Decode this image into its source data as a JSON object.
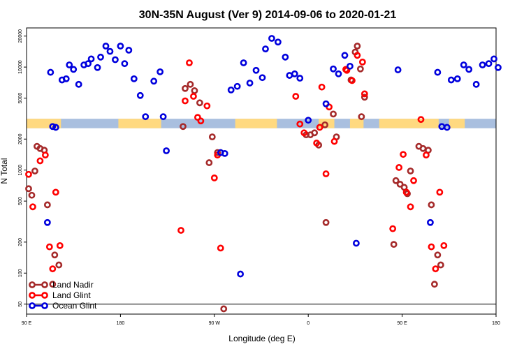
{
  "chart_data": {
    "type": "scatter",
    "title": "30N-35N August (Ver 9)   2014-09-06 to 2020-01-21",
    "xlabel": "Longitude (deg E)",
    "ylabel": "N Total",
    "y_scale": "log",
    "x_ticks": [
      {
        "label": "90 E",
        "value": 90
      },
      {
        "label": "180",
        "value": 180
      },
      {
        "label": "90 W",
        "value": 270
      },
      {
        "label": "0",
        "value": 360
      },
      {
        "label": "90 E",
        "value": 450
      },
      {
        "label": "180",
        "value": 540
      }
    ],
    "y_ticks": [
      50,
      100,
      200,
      500,
      1000,
      2000,
      5000,
      10000,
      20000
    ],
    "xlim": [
      90,
      540
    ],
    "ylim": [
      40,
      24000
    ],
    "reference_line": 50,
    "land_mask_band": {
      "y_range": [
        2550,
        3150
      ],
      "land_color": "#FFD980",
      "ocean_color": "#A9BFDF",
      "land_segments": [
        [
          90,
          123
        ],
        [
          178,
          219
        ],
        [
          290,
          330
        ],
        [
          370,
          385
        ],
        [
          400,
          413
        ],
        [
          428,
          485
        ],
        [
          495,
          510
        ]
      ]
    },
    "legend": {
      "position": "bottom-left"
    },
    "series": [
      {
        "name": "Land Nadir",
        "color": "#A52A2A",
        "points": [
          [
            92,
            660
          ],
          [
            95,
            570
          ],
          [
            98,
            980
          ],
          [
            100,
            1700
          ],
          [
            103,
            1620
          ],
          [
            107,
            1560
          ],
          [
            110,
            460
          ],
          [
            115,
            78
          ],
          [
            117,
            150
          ],
          [
            121,
            120
          ],
          [
            240,
            2650
          ],
          [
            242,
            6200
          ],
          [
            247,
            6800
          ],
          [
            251,
            5900
          ],
          [
            256,
            4500
          ],
          [
            265,
            1180
          ],
          [
            268,
            2100
          ],
          [
            273,
            1480
          ],
          [
            279,
            45
          ],
          [
            358,
            2200
          ],
          [
            362,
            2200
          ],
          [
            366,
            2300
          ],
          [
            370,
            1750
          ],
          [
            376,
            2750
          ],
          [
            377,
            310
          ],
          [
            384,
            3500
          ],
          [
            387,
            2100
          ],
          [
            401,
            7500
          ],
          [
            405,
            14000
          ],
          [
            407,
            16000
          ],
          [
            410,
            9600
          ],
          [
            414,
            5100
          ],
          [
            411,
            3300
          ],
          [
            442,
            190
          ],
          [
            444,
            790
          ],
          [
            448,
            730
          ],
          [
            452,
            680
          ],
          [
            455,
            590
          ],
          [
            458,
            980
          ],
          [
            466,
            1700
          ],
          [
            470,
            1620
          ],
          [
            475,
            1560
          ],
          [
            478,
            460
          ],
          [
            481,
            78
          ],
          [
            484,
            150
          ],
          [
            487,
            120
          ]
        ]
      },
      {
        "name": "Land Glint",
        "color": "#FF0000",
        "points": [
          [
            92,
            910
          ],
          [
            96,
            440
          ],
          [
            103,
            1230
          ],
          [
            108,
            1400
          ],
          [
            112,
            180
          ],
          [
            115,
            110
          ],
          [
            118,
            610
          ],
          [
            122,
            185
          ],
          [
            238,
            260
          ],
          [
            242,
            4700
          ],
          [
            246,
            11000
          ],
          [
            250,
            5200
          ],
          [
            254,
            3250
          ],
          [
            257,
            3000
          ],
          [
            263,
            4200
          ],
          [
            270,
            840
          ],
          [
            273,
            1400
          ],
          [
            276,
            175
          ],
          [
            348,
            5200
          ],
          [
            352,
            2800
          ],
          [
            356,
            2300
          ],
          [
            368,
            1830
          ],
          [
            371,
            2600
          ],
          [
            373,
            6400
          ],
          [
            377,
            920
          ],
          [
            380,
            4100
          ],
          [
            385,
            1900
          ],
          [
            396,
            9500
          ],
          [
            397,
            9300
          ],
          [
            402,
            7400
          ],
          [
            407,
            13000
          ],
          [
            412,
            11200
          ],
          [
            414,
            5500
          ],
          [
            441,
            270
          ],
          [
            447,
            1060
          ],
          [
            451,
            1420
          ],
          [
            454,
            610
          ],
          [
            458,
            440
          ],
          [
            461,
            790
          ],
          [
            468,
            3100
          ],
          [
            473,
            1400
          ],
          [
            478,
            180
          ],
          [
            482,
            110
          ],
          [
            486,
            610
          ],
          [
            490,
            185
          ]
        ]
      },
      {
        "name": "Ocean Glint",
        "color": "#0000DD",
        "points": [
          [
            110,
            310
          ],
          [
            113,
            8900
          ],
          [
            115,
            2650
          ],
          [
            118,
            2600
          ],
          [
            124,
            7500
          ],
          [
            128,
            7700
          ],
          [
            131,
            10500
          ],
          [
            135,
            9500
          ],
          [
            140,
            6800
          ],
          [
            145,
            10500
          ],
          [
            149,
            10800
          ],
          [
            152,
            12000
          ],
          [
            158,
            9900
          ],
          [
            161,
            12500
          ],
          [
            166,
            16000
          ],
          [
            170,
            14200
          ],
          [
            175,
            11800
          ],
          [
            180,
            16000
          ],
          [
            184,
            10800
          ],
          [
            188,
            14600
          ],
          [
            193,
            7700
          ],
          [
            199,
            5300
          ],
          [
            204,
            3300
          ],
          [
            212,
            7300
          ],
          [
            218,
            9000
          ],
          [
            221,
            3300
          ],
          [
            224,
            1540
          ],
          [
            276,
            1480
          ],
          [
            280,
            1450
          ],
          [
            286,
            6000
          ],
          [
            292,
            6500
          ],
          [
            295,
            98
          ],
          [
            298,
            11000
          ],
          [
            304,
            7000
          ],
          [
            310,
            9300
          ],
          [
            316,
            7900
          ],
          [
            319,
            15000
          ],
          [
            325,
            19000
          ],
          [
            331,
            17500
          ],
          [
            338,
            12500
          ],
          [
            342,
            8300
          ],
          [
            347,
            8600
          ],
          [
            352,
            7800
          ],
          [
            360,
            3050
          ],
          [
            377,
            4400
          ],
          [
            384,
            9600
          ],
          [
            389,
            8600
          ],
          [
            395,
            13000
          ],
          [
            400,
            10200
          ],
          [
            406,
            195
          ],
          [
            446,
            9400
          ],
          [
            477,
            310
          ],
          [
            484,
            8900
          ],
          [
            488,
            2650
          ],
          [
            493,
            2600
          ],
          [
            497,
            7500
          ],
          [
            503,
            7700
          ],
          [
            509,
            10500
          ],
          [
            514,
            9500
          ],
          [
            521,
            6800
          ],
          [
            527,
            10500
          ],
          [
            533,
            10800
          ],
          [
            538,
            12000
          ],
          [
            542,
            9900
          ]
        ]
      }
    ]
  }
}
